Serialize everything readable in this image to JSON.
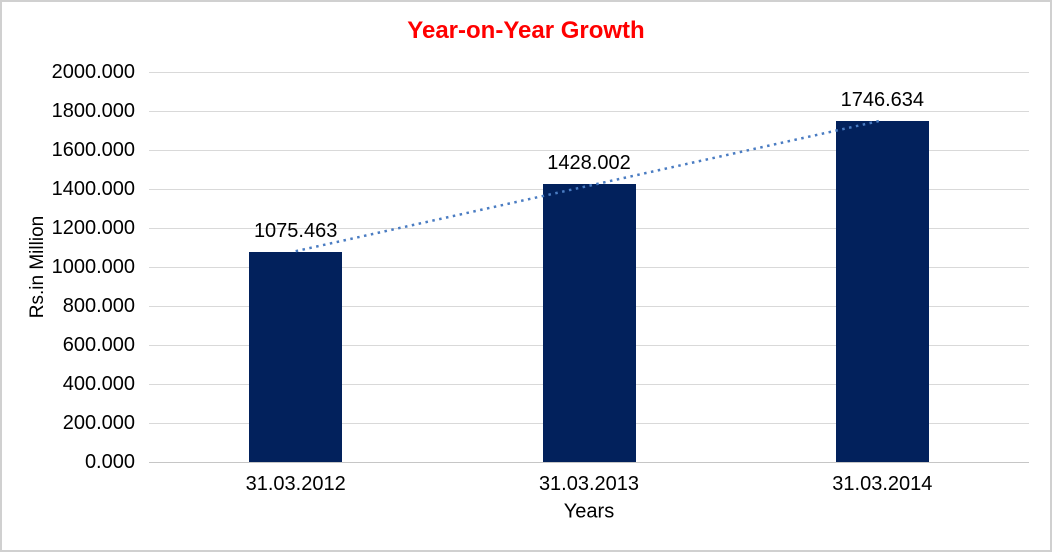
{
  "window": {
    "background": "#FFFFFF",
    "border_color": "#D0D0D0"
  },
  "colors": {
    "title": "#FF0000",
    "bar": "#02215C",
    "trendline": "#4A7CC2",
    "gridline": "#D9D9D9",
    "axis_line": "#C6C6C6",
    "text": "#000000"
  },
  "chart_data": {
    "type": "bar",
    "title": "Year-on-Year Growth",
    "categories": [
      "31.03.2012",
      "31.03.2013",
      "31.03.2014"
    ],
    "values": [
      1075.463,
      1428.002,
      1746.634
    ],
    "data_labels": [
      "1075.463",
      "1428.002",
      "1746.634"
    ],
    "xlabel": "Years",
    "ylabel": "Rs.in Million",
    "ylim": [
      0,
      2000
    ],
    "ytick_step": 200,
    "ytick_labels": [
      "0.000",
      "200.000",
      "400.000",
      "600.000",
      "800.000",
      "1000.000",
      "1200.000",
      "1400.000",
      "1600.000",
      "1800.000",
      "2000.000"
    ],
    "grid": true,
    "legend": "none",
    "trendline": {
      "type": "linear",
      "style": "dotted"
    }
  }
}
